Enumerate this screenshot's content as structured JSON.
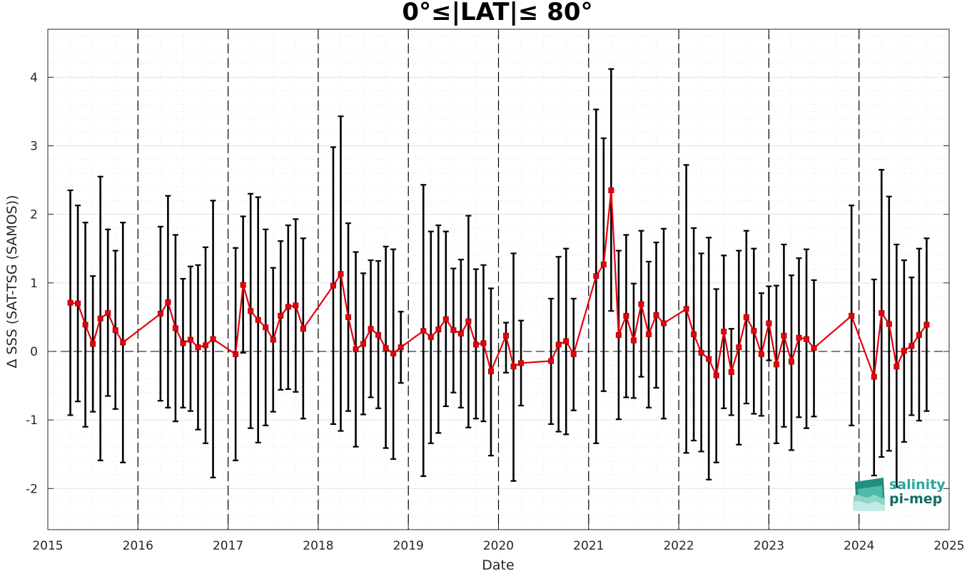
{
  "chart_data": {
    "type": "line",
    "title": "0°≤|LAT|≤ 80°",
    "xlabel": "Date",
    "ylabel": "Δ SSS (SAT-TSG (SAMOS))",
    "xlim": [
      2015,
      2025
    ],
    "ylim": [
      -2.6,
      4.7
    ],
    "xticks": [
      "2015",
      "2016",
      "2017",
      "2018",
      "2019",
      "2020",
      "2021",
      "2022",
      "2023",
      "2024",
      "2025"
    ],
    "yticks": [
      "-2",
      "-1",
      "0",
      "1",
      "2",
      "3",
      "4"
    ],
    "grid": true,
    "year_dividers": true,
    "colors": {
      "series": "#e8000b",
      "errorbar": "#000000",
      "grid": "#d9d9d9",
      "logo": "#1a9a86"
    },
    "series": [
      {
        "points": [
          {
            "x": "2015-04",
            "y": 0.71,
            "lo": -0.93,
            "hi": 2.35
          },
          {
            "x": "2015-05",
            "y": 0.7,
            "lo": -0.73,
            "hi": 2.13
          },
          {
            "x": "2015-06",
            "y": 0.39,
            "lo": -1.1,
            "hi": 1.88
          },
          {
            "x": "2015-07",
            "y": 0.11,
            "lo": -0.88,
            "hi": 1.1
          },
          {
            "x": "2015-08",
            "y": 0.48,
            "lo": -1.59,
            "hi": 2.55
          },
          {
            "x": "2015-09",
            "y": 0.56,
            "lo": -0.65,
            "hi": 1.78
          },
          {
            "x": "2015-10",
            "y": 0.31,
            "lo": -0.84,
            "hi": 1.47
          },
          {
            "x": "2015-11",
            "y": 0.13,
            "lo": -1.62,
            "hi": 1.88
          },
          {
            "x": "2016-04",
            "y": 0.55,
            "lo": -0.72,
            "hi": 1.82
          },
          {
            "x": "2016-05",
            "y": 0.72,
            "lo": -0.82,
            "hi": 2.27
          },
          {
            "x": "2016-06",
            "y": 0.34,
            "lo": -1.02,
            "hi": 1.7
          },
          {
            "x": "2016-07",
            "y": 0.12,
            "lo": -0.82,
            "hi": 1.06
          },
          {
            "x": "2016-08",
            "y": 0.17,
            "lo": -0.87,
            "hi": 1.24
          },
          {
            "x": "2016-09",
            "y": 0.06,
            "lo": -1.14,
            "hi": 1.26
          },
          {
            "x": "2016-10",
            "y": 0.09,
            "lo": -1.34,
            "hi": 1.52
          },
          {
            "x": "2016-11",
            "y": 0.18,
            "lo": -1.84,
            "hi": 2.2
          },
          {
            "x": "2017-02",
            "y": -0.04,
            "lo": -1.59,
            "hi": 1.51
          },
          {
            "x": "2017-03",
            "y": 0.97,
            "lo": -0.02,
            "hi": 1.97
          },
          {
            "x": "2017-04",
            "y": 0.59,
            "lo": -1.12,
            "hi": 2.3
          },
          {
            "x": "2017-05",
            "y": 0.46,
            "lo": -1.33,
            "hi": 2.25
          },
          {
            "x": "2017-06",
            "y": 0.35,
            "lo": -1.08,
            "hi": 1.78
          },
          {
            "x": "2017-07",
            "y": 0.17,
            "lo": -0.88,
            "hi": 1.22
          },
          {
            "x": "2017-08",
            "y": 0.52,
            "lo": -0.56,
            "hi": 1.61
          },
          {
            "x": "2017-09",
            "y": 0.65,
            "lo": -0.55,
            "hi": 1.84
          },
          {
            "x": "2017-10",
            "y": 0.67,
            "lo": -0.59,
            "hi": 1.93
          },
          {
            "x": "2017-11",
            "y": 0.33,
            "lo": -0.98,
            "hi": 1.65
          },
          {
            "x": "2018-03",
            "y": 0.96,
            "lo": -1.06,
            "hi": 2.98
          },
          {
            "x": "2018-04",
            "y": 1.13,
            "lo": -1.16,
            "hi": 3.43
          },
          {
            "x": "2018-05",
            "y": 0.5,
            "lo": -0.87,
            "hi": 1.87
          },
          {
            "x": "2018-06",
            "y": 0.03,
            "lo": -1.39,
            "hi": 1.45
          },
          {
            "x": "2018-07",
            "y": 0.11,
            "lo": -0.92,
            "hi": 1.14
          },
          {
            "x": "2018-08",
            "y": 0.33,
            "lo": -0.67,
            "hi": 1.33
          },
          {
            "x": "2018-09",
            "y": 0.24,
            "lo": -0.83,
            "hi": 1.32
          },
          {
            "x": "2018-10",
            "y": 0.05,
            "lo": -1.41,
            "hi": 1.53
          },
          {
            "x": "2018-11",
            "y": -0.03,
            "lo": -1.57,
            "hi": 1.49
          },
          {
            "x": "2018-12",
            "y": 0.06,
            "lo": -0.46,
            "hi": 0.58
          },
          {
            "x": "2019-03",
            "y": 0.3,
            "lo": -1.82,
            "hi": 2.43
          },
          {
            "x": "2019-04",
            "y": 0.21,
            "lo": -1.34,
            "hi": 1.75
          },
          {
            "x": "2019-05",
            "y": 0.32,
            "lo": -1.19,
            "hi": 1.84
          },
          {
            "x": "2019-06",
            "y": 0.47,
            "lo": -0.8,
            "hi": 1.75
          },
          {
            "x": "2019-07",
            "y": 0.31,
            "lo": -0.6,
            "hi": 1.21
          },
          {
            "x": "2019-08",
            "y": 0.26,
            "lo": -0.82,
            "hi": 1.34
          },
          {
            "x": "2019-09",
            "y": 0.44,
            "lo": -1.11,
            "hi": 1.98
          },
          {
            "x": "2019-10",
            "y": 0.1,
            "lo": -0.98,
            "hi": 1.2
          },
          {
            "x": "2019-11",
            "y": 0.12,
            "lo": -1.02,
            "hi": 1.26
          },
          {
            "x": "2019-12",
            "y": -0.29,
            "lo": -1.52,
            "hi": 0.92
          },
          {
            "x": "2020-02",
            "y": 0.23,
            "lo": -0.31,
            "hi": 0.42
          },
          {
            "x": "2020-03",
            "y": -0.22,
            "lo": -1.89,
            "hi": 1.43
          },
          {
            "x": "2020-04",
            "y": -0.17,
            "lo": -0.79,
            "hi": 0.45
          },
          {
            "x": "2020-08",
            "y": -0.14,
            "lo": -1.06,
            "hi": 0.77
          },
          {
            "x": "2020-09",
            "y": 0.1,
            "lo": -1.17,
            "hi": 1.38
          },
          {
            "x": "2020-10",
            "y": 0.15,
            "lo": -1.21,
            "hi": 1.5
          },
          {
            "x": "2020-11",
            "y": -0.04,
            "lo": -0.86,
            "hi": 0.77
          },
          {
            "x": "2021-02",
            "y": 1.1,
            "lo": -1.34,
            "hi": 3.53
          },
          {
            "x": "2021-03",
            "y": 1.27,
            "lo": -0.58,
            "hi": 3.11
          },
          {
            "x": "2021-04",
            "y": 2.35,
            "lo": 0.59,
            "hi": 4.12
          },
          {
            "x": "2021-05",
            "y": 0.24,
            "lo": -0.99,
            "hi": 1.47
          },
          {
            "x": "2021-06",
            "y": 0.52,
            "lo": -0.67,
            "hi": 1.7
          },
          {
            "x": "2021-07",
            "y": 0.16,
            "lo": -0.68,
            "hi": 0.99
          },
          {
            "x": "2021-08",
            "y": 0.69,
            "lo": -0.37,
            "hi": 1.76
          },
          {
            "x": "2021-09",
            "y": 0.25,
            "lo": -0.82,
            "hi": 1.31
          },
          {
            "x": "2021-10",
            "y": 0.53,
            "lo": -0.53,
            "hi": 1.59
          },
          {
            "x": "2021-11",
            "y": 0.41,
            "lo": -0.98,
            "hi": 1.79
          },
          {
            "x": "2022-02",
            "y": 0.62,
            "lo": -1.48,
            "hi": 2.72
          },
          {
            "x": "2022-03",
            "y": 0.25,
            "lo": -1.3,
            "hi": 1.8
          },
          {
            "x": "2022-04",
            "y": -0.02,
            "lo": -1.46,
            "hi": 1.43
          },
          {
            "x": "2022-05",
            "y": -0.11,
            "lo": -1.87,
            "hi": 1.66
          },
          {
            "x": "2022-06",
            "y": -0.35,
            "lo": -1.62,
            "hi": 0.91
          },
          {
            "x": "2022-07",
            "y": 0.29,
            "lo": -0.83,
            "hi": 1.4
          },
          {
            "x": "2022-08",
            "y": -0.3,
            "lo": -0.93,
            "hi": 0.33
          },
          {
            "x": "2022-09",
            "y": 0.06,
            "lo": -1.36,
            "hi": 1.47
          },
          {
            "x": "2022-10",
            "y": 0.5,
            "lo": -0.76,
            "hi": 1.76
          },
          {
            "x": "2022-11",
            "y": 0.3,
            "lo": -0.91,
            "hi": 1.5
          },
          {
            "x": "2022-12",
            "y": -0.04,
            "lo": -0.94,
            "hi": 0.85
          },
          {
            "x": "2023-01",
            "y": 0.41,
            "lo": -0.13,
            "hi": 0.95
          },
          {
            "x": "2023-02",
            "y": -0.19,
            "lo": -1.34,
            "hi": 0.96
          },
          {
            "x": "2023-03",
            "y": 0.23,
            "lo": -1.1,
            "hi": 1.56
          },
          {
            "x": "2023-04",
            "y": -0.15,
            "lo": -1.44,
            "hi": 1.11
          },
          {
            "x": "2023-05",
            "y": 0.2,
            "lo": -0.96,
            "hi": 1.36
          },
          {
            "x": "2023-06",
            "y": 0.18,
            "lo": -1.12,
            "hi": 1.49
          },
          {
            "x": "2023-07",
            "y": 0.05,
            "lo": -0.95,
            "hi": 1.04
          },
          {
            "x": "2023-12",
            "y": 0.52,
            "lo": -1.08,
            "hi": 2.13
          },
          {
            "x": "2024-03",
            "y": -0.37,
            "lo": -1.81,
            "hi": 1.05
          },
          {
            "x": "2024-04",
            "y": 0.56,
            "lo": -1.54,
            "hi": 2.65
          },
          {
            "x": "2024-05",
            "y": 0.4,
            "lo": -1.45,
            "hi": 2.26
          },
          {
            "x": "2024-06",
            "y": -0.22,
            "lo": -1.98,
            "hi": 1.56
          },
          {
            "x": "2024-07",
            "y": 0.01,
            "lo": -1.32,
            "hi": 1.33
          },
          {
            "x": "2024-08",
            "y": 0.08,
            "lo": -0.93,
            "hi": 1.08
          },
          {
            "x": "2024-09",
            "y": 0.24,
            "lo": -1.01,
            "hi": 1.5
          },
          {
            "x": "2024-10",
            "y": 0.39,
            "lo": -0.87,
            "hi": 1.65
          }
        ]
      }
    ]
  },
  "logo": {
    "line1": "salinity",
    "line2": "pi-mep"
  }
}
